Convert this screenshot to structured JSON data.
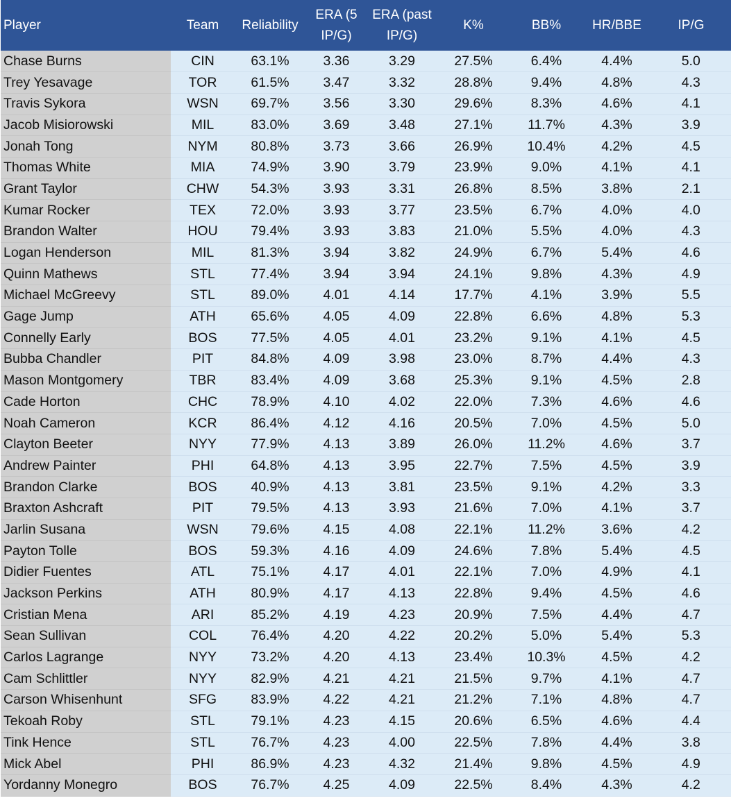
{
  "columns": {
    "player": "Player",
    "team": "Team",
    "reliability": "Reliability",
    "era5_line1": "ERA (5",
    "era5_line2": "IP/G)",
    "erapast_line1": "ERA (past",
    "erapast_line2": "IP/G)",
    "k": "K%",
    "bb": "BB%",
    "hrbbe": "HR/BBE",
    "ipg": "IP/G"
  },
  "rows": [
    [
      "Chase Burns",
      "CIN",
      "63.1%",
      "3.36",
      "3.29",
      "27.5%",
      "6.4%",
      "4.4%",
      "5.0"
    ],
    [
      "Trey Yesavage",
      "TOR",
      "61.5%",
      "3.47",
      "3.32",
      "28.8%",
      "9.4%",
      "4.8%",
      "4.3"
    ],
    [
      "Travis Sykora",
      "WSN",
      "69.7%",
      "3.56",
      "3.30",
      "29.6%",
      "8.3%",
      "4.6%",
      "4.1"
    ],
    [
      "Jacob Misiorowski",
      "MIL",
      "83.0%",
      "3.69",
      "3.48",
      "27.1%",
      "11.7%",
      "4.3%",
      "3.9"
    ],
    [
      "Jonah Tong",
      "NYM",
      "80.8%",
      "3.73",
      "3.66",
      "26.9%",
      "10.4%",
      "4.2%",
      "4.5"
    ],
    [
      "Thomas White",
      "MIA",
      "74.9%",
      "3.90",
      "3.79",
      "23.9%",
      "9.0%",
      "4.1%",
      "4.1"
    ],
    [
      "Grant Taylor",
      "CHW",
      "54.3%",
      "3.93",
      "3.31",
      "26.8%",
      "8.5%",
      "3.8%",
      "2.1"
    ],
    [
      "Kumar Rocker",
      "TEX",
      "72.0%",
      "3.93",
      "3.77",
      "23.5%",
      "6.7%",
      "4.0%",
      "4.0"
    ],
    [
      "Brandon Walter",
      "HOU",
      "79.4%",
      "3.93",
      "3.83",
      "21.0%",
      "5.5%",
      "4.0%",
      "4.3"
    ],
    [
      "Logan Henderson",
      "MIL",
      "81.3%",
      "3.94",
      "3.82",
      "24.9%",
      "6.7%",
      "5.4%",
      "4.6"
    ],
    [
      "Quinn Mathews",
      "STL",
      "77.4%",
      "3.94",
      "3.94",
      "24.1%",
      "9.8%",
      "4.3%",
      "4.9"
    ],
    [
      "Michael McGreevy",
      "STL",
      "89.0%",
      "4.01",
      "4.14",
      "17.7%",
      "4.1%",
      "3.9%",
      "5.5"
    ],
    [
      "Gage Jump",
      "ATH",
      "65.6%",
      "4.05",
      "4.09",
      "22.8%",
      "6.6%",
      "4.8%",
      "5.3"
    ],
    [
      "Connelly Early",
      "BOS",
      "77.5%",
      "4.05",
      "4.01",
      "23.2%",
      "9.1%",
      "4.1%",
      "4.5"
    ],
    [
      "Bubba Chandler",
      "PIT",
      "84.8%",
      "4.09",
      "3.98",
      "23.0%",
      "8.7%",
      "4.4%",
      "4.3"
    ],
    [
      "Mason Montgomery",
      "TBR",
      "83.4%",
      "4.09",
      "3.68",
      "25.3%",
      "9.1%",
      "4.5%",
      "2.8"
    ],
    [
      "Cade Horton",
      "CHC",
      "78.9%",
      "4.10",
      "4.02",
      "22.0%",
      "7.3%",
      "4.6%",
      "4.6"
    ],
    [
      "Noah Cameron",
      "KCR",
      "86.4%",
      "4.12",
      "4.16",
      "20.5%",
      "7.0%",
      "4.5%",
      "5.0"
    ],
    [
      "Clayton Beeter",
      "NYY",
      "77.9%",
      "4.13",
      "3.89",
      "26.0%",
      "11.2%",
      "4.6%",
      "3.7"
    ],
    [
      "Andrew Painter",
      "PHI",
      "64.8%",
      "4.13",
      "3.95",
      "22.7%",
      "7.5%",
      "4.5%",
      "3.9"
    ],
    [
      "Brandon Clarke",
      "BOS",
      "40.9%",
      "4.13",
      "3.81",
      "23.5%",
      "9.1%",
      "4.2%",
      "3.3"
    ],
    [
      "Braxton Ashcraft",
      "PIT",
      "79.5%",
      "4.13",
      "3.93",
      "21.6%",
      "7.0%",
      "4.1%",
      "3.7"
    ],
    [
      "Jarlin Susana",
      "WSN",
      "79.6%",
      "4.15",
      "4.08",
      "22.1%",
      "11.2%",
      "3.6%",
      "4.2"
    ],
    [
      "Payton Tolle",
      "BOS",
      "59.3%",
      "4.16",
      "4.09",
      "24.6%",
      "7.8%",
      "5.4%",
      "4.5"
    ],
    [
      "Didier Fuentes",
      "ATL",
      "75.1%",
      "4.17",
      "4.01",
      "22.1%",
      "7.0%",
      "4.9%",
      "4.1"
    ],
    [
      "Jackson Perkins",
      "ATH",
      "80.9%",
      "4.17",
      "4.13",
      "22.8%",
      "9.4%",
      "4.5%",
      "4.6"
    ],
    [
      "Cristian Mena",
      "ARI",
      "85.2%",
      "4.19",
      "4.23",
      "20.9%",
      "7.5%",
      "4.4%",
      "4.7"
    ],
    [
      "Sean Sullivan",
      "COL",
      "76.4%",
      "4.20",
      "4.22",
      "20.2%",
      "5.0%",
      "5.4%",
      "5.3"
    ],
    [
      "Carlos Lagrange",
      "NYY",
      "73.2%",
      "4.20",
      "4.13",
      "23.4%",
      "10.3%",
      "4.5%",
      "4.2"
    ],
    [
      "Cam Schlittler",
      "NYY",
      "82.9%",
      "4.21",
      "4.21",
      "21.5%",
      "9.7%",
      "4.1%",
      "4.7"
    ],
    [
      "Carson Whisenhunt",
      "SFG",
      "83.9%",
      "4.22",
      "4.21",
      "21.2%",
      "7.1%",
      "4.8%",
      "4.7"
    ],
    [
      "Tekoah Roby",
      "STL",
      "79.1%",
      "4.23",
      "4.15",
      "20.6%",
      "6.5%",
      "4.6%",
      "4.4"
    ],
    [
      "Tink Hence",
      "STL",
      "76.7%",
      "4.23",
      "4.00",
      "22.5%",
      "7.8%",
      "4.4%",
      "3.8"
    ],
    [
      "Mick Abel",
      "PHI",
      "86.9%",
      "4.23",
      "4.32",
      "21.4%",
      "9.8%",
      "4.5%",
      "4.9"
    ],
    [
      "Yordanny Monegro",
      "BOS",
      "76.7%",
      "4.25",
      "4.09",
      "22.5%",
      "8.4%",
      "4.3%",
      "4.2"
    ]
  ]
}
